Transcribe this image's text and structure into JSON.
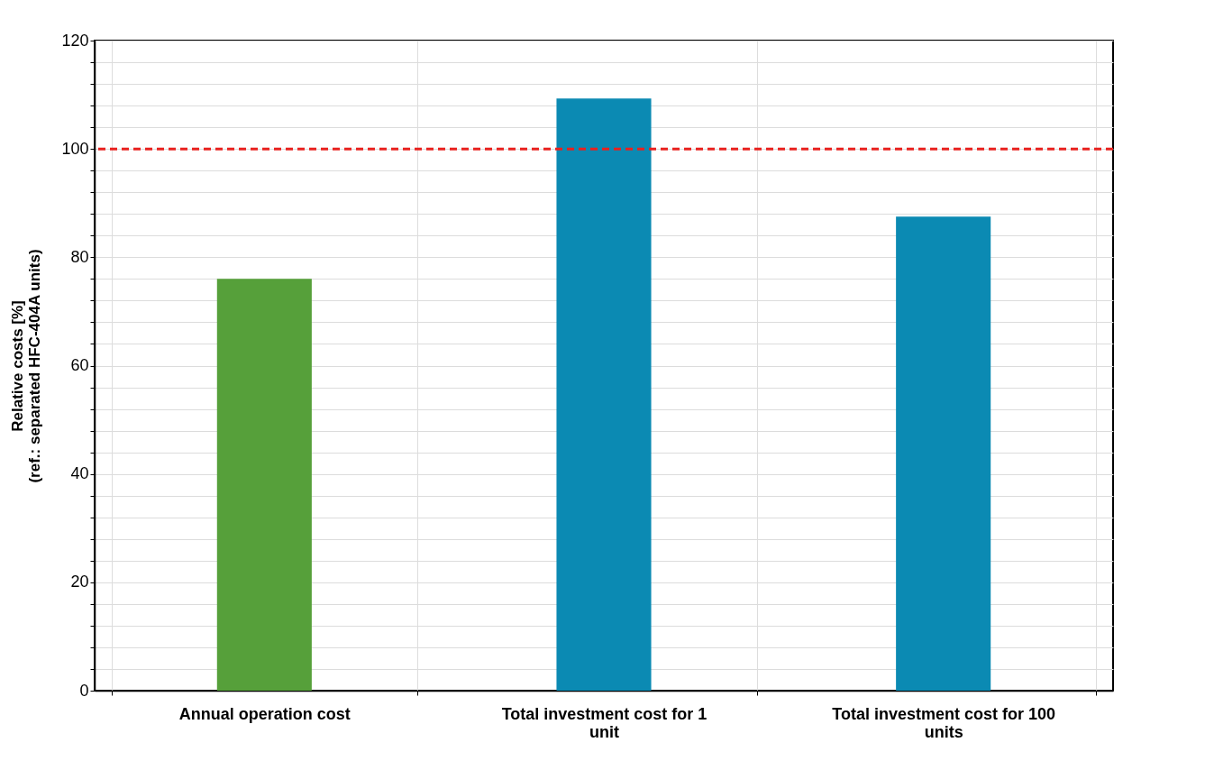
{
  "chart_data": {
    "type": "bar",
    "ylabel": "Relative costs [%]\n(ref.: separated HFC-404A units)",
    "categories": [
      "Annual operation cost",
      "Total investment cost for 1 unit",
      "Total investment cost for 100 units"
    ],
    "values": [
      76,
      109.3,
      87.5
    ],
    "colors": [
      "#56a03a",
      "#0b8ab3",
      "#0b8ab3"
    ],
    "ylim": [
      0,
      120
    ],
    "yticks": [
      0,
      {
        "value": 4,
        "label": null
      },
      {
        "value": 8,
        "label": null
      },
      {
        "value": 12,
        "label": null
      },
      {
        "value": 16,
        "label": null
      },
      20,
      {
        "value": 24,
        "label": null
      },
      {
        "value": 28,
        "label": null
      },
      {
        "value": 32,
        "label": null
      },
      {
        "value": 36,
        "label": null
      },
      40,
      {
        "value": 44,
        "label": null
      },
      {
        "value": 48,
        "label": null
      },
      {
        "value": 52,
        "label": null
      },
      {
        "value": 56,
        "label": null
      },
      60,
      {
        "value": 64,
        "label": null
      },
      {
        "value": 68,
        "label": null
      },
      {
        "value": 72,
        "label": null
      },
      {
        "value": 76,
        "label": null
      },
      80,
      {
        "value": 84,
        "label": null
      },
      {
        "value": 88,
        "label": null
      },
      {
        "value": 92,
        "label": null
      },
      {
        "value": 96,
        "label": null
      },
      100,
      {
        "value": 104,
        "label": null
      },
      {
        "value": 108,
        "label": null
      },
      {
        "value": 112,
        "label": null
      },
      {
        "value": 116,
        "label": null
      },
      120
    ],
    "grid": true,
    "ref_lines": [
      {
        "axis": "y",
        "value": 100,
        "color": "#e8211f",
        "line_style": "dashed"
      }
    ]
  }
}
